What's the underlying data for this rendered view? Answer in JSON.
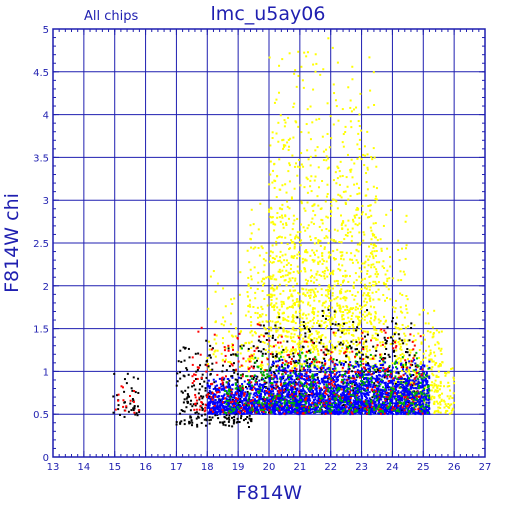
{
  "chart_data": {
    "type": "scatter",
    "title": "lmc_u5ay06",
    "subtitle": "All chips",
    "xlabel": "F814W",
    "ylabel": "F814W chi",
    "xlim": [
      13,
      27
    ],
    "ylim": [
      0,
      5
    ],
    "xticks": [
      "13",
      "14",
      "15",
      "16",
      "17",
      "18",
      "19",
      "20",
      "21",
      "22",
      "23",
      "24",
      "25",
      "26",
      "27"
    ],
    "yticks": [
      "0",
      "0.5",
      "1",
      "1.5",
      "2",
      "2.5",
      "3",
      "3.5",
      "4",
      "4.5",
      "5"
    ],
    "grid": true,
    "colors": {
      "axis": "#1f1fb0",
      "grid": "#1f1fb0",
      "text": "#1f1fb0"
    },
    "series": [
      {
        "color": "#ffff00",
        "clusters": [
          {
            "x": [
              20.0,
              23.5
            ],
            "y": [
              1.2,
              5.0
            ],
            "n": 900
          },
          {
            "x": [
              19.3,
              24.5
            ],
            "y": [
              1.0,
              3.0
            ],
            "n": 700
          },
          {
            "x": [
              18.0,
              19.5
            ],
            "y": [
              1.0,
              2.2
            ],
            "n": 80
          },
          {
            "x": [
              24.0,
              25.6
            ],
            "y": [
              0.6,
              1.8
            ],
            "n": 250
          },
          {
            "x": [
              24.5,
              26.0
            ],
            "y": [
              0.5,
              1.2
            ],
            "n": 120
          }
        ]
      },
      {
        "color": "#000000",
        "clusters": [
          {
            "x": [
              14.9,
              15.8
            ],
            "y": [
              0.45,
              1.05
            ],
            "n": 40
          },
          {
            "x": [
              17.0,
              19.5
            ],
            "y": [
              0.35,
              1.4
            ],
            "n": 280
          },
          {
            "x": [
              19.5,
              24.8
            ],
            "y": [
              0.5,
              1.8
            ],
            "n": 500
          }
        ]
      },
      {
        "color": "#0000ff",
        "clusters": [
          {
            "x": [
              18.0,
              20.0
            ],
            "y": [
              0.5,
              0.95
            ],
            "n": 600
          },
          {
            "x": [
              20.0,
              25.2
            ],
            "y": [
              0.5,
              1.15
            ],
            "n": 2400
          }
        ]
      },
      {
        "color": "#ff0000",
        "clusters": [
          {
            "x": [
              15.0,
              15.8
            ],
            "y": [
              0.5,
              0.9
            ],
            "n": 15
          },
          {
            "x": [
              17.5,
              25.0
            ],
            "y": [
              0.5,
              1.6
            ],
            "n": 450
          }
        ]
      },
      {
        "color": "#00b400",
        "clusters": [
          {
            "x": [
              18.5,
              25.2
            ],
            "y": [
              0.5,
              1.3
            ],
            "n": 450
          }
        ]
      }
    ]
  }
}
